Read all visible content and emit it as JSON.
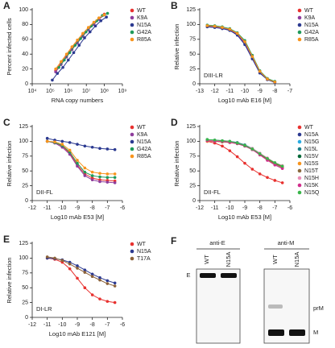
{
  "chart_data": [
    {
      "panel": "A",
      "type": "line",
      "log_x": true,
      "x_label": "RNA copy numbers",
      "y_label": "Percent infected cells",
      "xlim": [
        10000,
        1000000000
      ],
      "xticks": [
        {
          "value": 10000,
          "label": "10⁴"
        },
        {
          "value": 100000,
          "label": "10⁵"
        },
        {
          "value": 1000000,
          "label": "10⁶"
        },
        {
          "value": 10000000,
          "label": "10⁷"
        },
        {
          "value": 100000000,
          "label": "10⁸"
        },
        {
          "value": 1000000000,
          "label": "10⁹"
        }
      ],
      "ylim": [
        0,
        100
      ],
      "yticks": [
        0,
        20,
        40,
        60,
        80,
        100
      ],
      "series": [
        {
          "name": "WT",
          "color": "#e8312f",
          "x": [
            200000,
            400000,
            800000,
            1600000,
            3200000,
            6400000,
            13000000,
            26000000,
            50000000,
            100000000
          ],
          "values": [
            18,
            28,
            38,
            48,
            57,
            66,
            74,
            81,
            88,
            94
          ]
        },
        {
          "name": "K9A",
          "color": "#8e3d9c",
          "x": [
            200000,
            400000,
            800000,
            1600000,
            3200000,
            6400000,
            13000000,
            26000000,
            50000000,
            100000000
          ],
          "values": [
            16,
            26,
            36,
            46,
            55,
            64,
            73,
            80,
            87,
            93
          ]
        },
        {
          "name": "N15A",
          "color": "#2b3990",
          "x": [
            130000,
            250000,
            500000,
            1000000,
            2000000,
            4000000,
            8000000,
            16000000,
            32000000,
            64000000,
            130000000
          ],
          "values": [
            5,
            14,
            22,
            32,
            42,
            52,
            62,
            70,
            78,
            85,
            90
          ]
        },
        {
          "name": "G42A",
          "color": "#1f9a5a",
          "x": [
            300000,
            600000,
            1200000,
            2400000,
            4800000,
            9600000,
            19000000,
            38000000,
            77000000,
            150000000
          ],
          "values": [
            22,
            32,
            42,
            52,
            61,
            70,
            78,
            85,
            92,
            95
          ]
        },
        {
          "name": "R85A",
          "color": "#f7941d",
          "x": [
            200000,
            400000,
            800000,
            1600000,
            3200000,
            6400000,
            13000000,
            26000000,
            50000000,
            100000000
          ],
          "values": [
            20,
            30,
            40,
            50,
            59,
            68,
            76,
            83,
            89,
            93
          ]
        }
      ]
    },
    {
      "panel": "B",
      "type": "line",
      "x_label": "Log10 mAb E16 [M]",
      "y_label": "Relative infection",
      "annotation": "DIII-LR",
      "xlim": [
        -13,
        -7
      ],
      "xticks": [
        -13,
        -12,
        -11,
        -10,
        -9,
        -8,
        -7
      ],
      "ylim": [
        0,
        125
      ],
      "yticks": [
        0,
        25,
        50,
        75,
        100,
        125
      ],
      "x": [
        -12.5,
        -12,
        -11.5,
        -11,
        -10.5,
        -10,
        -9.5,
        -9,
        -8.5,
        -8
      ],
      "series": [
        {
          "name": "WT",
          "color": "#e8312f",
          "values": [
            98,
            97,
            95,
            91,
            84,
            70,
            45,
            20,
            8,
            3
          ]
        },
        {
          "name": "K9A",
          "color": "#8e3d9c",
          "values": [
            97,
            96,
            94,
            90,
            83,
            68,
            43,
            19,
            7,
            3
          ]
        },
        {
          "name": "N15A",
          "color": "#2b3990",
          "values": [
            96,
            95,
            93,
            90,
            82,
            66,
            42,
            18,
            7,
            2
          ]
        },
        {
          "name": "G42A",
          "color": "#1f9a5a",
          "values": [
            99,
            98,
            96,
            93,
            86,
            73,
            48,
            22,
            9,
            4
          ]
        },
        {
          "name": "R85A",
          "color": "#f7941d",
          "values": [
            98,
            97,
            95,
            92,
            85,
            71,
            46,
            21,
            8,
            3
          ]
        }
      ]
    },
    {
      "panel": "C",
      "type": "line",
      "x_label": "Log10 mAb E53 [M]",
      "y_label": "Relative infection",
      "annotation": "DII-FL",
      "xlim": [
        -12,
        -6
      ],
      "xticks": [
        -12,
        -11,
        -10,
        -9,
        -8,
        -7,
        -6
      ],
      "ylim": [
        0,
        125
      ],
      "yticks": [
        0,
        25,
        50,
        75,
        100,
        125
      ],
      "x": [
        -11,
        -10.5,
        -10,
        -9.5,
        -9,
        -8.5,
        -8,
        -7.5,
        -7,
        -6.5
      ],
      "series": [
        {
          "name": "WT",
          "color": "#e8312f",
          "values": [
            100,
            98,
            92,
            80,
            60,
            45,
            38,
            35,
            34,
            33
          ]
        },
        {
          "name": "K9A",
          "color": "#8e3d9c",
          "values": [
            100,
            97,
            90,
            78,
            58,
            42,
            35,
            32,
            31,
            30
          ]
        },
        {
          "name": "N15A",
          "color": "#2b3990",
          "values": [
            105,
            102,
            100,
            98,
            95,
            92,
            90,
            88,
            87,
            86
          ]
        },
        {
          "name": "G42A",
          "color": "#1f9a5a",
          "values": [
            100,
            98,
            93,
            82,
            63,
            48,
            42,
            40,
            39,
            39
          ]
        },
        {
          "name": "R85A",
          "color": "#f7941d",
          "values": [
            100,
            99,
            95,
            85,
            68,
            55,
            48,
            46,
            45,
            45
          ]
        }
      ]
    },
    {
      "panel": "D",
      "type": "line",
      "x_label": "Log10 mAb E53 [M]",
      "y_label": "Relative infection",
      "annotation": "DII-FL",
      "xlim": [
        -12,
        -6
      ],
      "xticks": [
        -12,
        -11,
        -10,
        -9,
        -8,
        -7,
        -6
      ],
      "ylim": [
        0,
        125
      ],
      "yticks": [
        0,
        25,
        50,
        75,
        100,
        125
      ],
      "x": [
        -11.5,
        -11,
        -10.5,
        -10,
        -9.5,
        -9,
        -8.5,
        -8,
        -7.5,
        -7,
        -6.5
      ],
      "series": [
        {
          "name": "WT",
          "color": "#e8312f",
          "values": [
            100,
            97,
            92,
            84,
            74,
            63,
            53,
            45,
            39,
            34,
            30
          ]
        },
        {
          "name": "N15A",
          "color": "#2b3990",
          "values": [
            102,
            101,
            100,
            99,
            97,
            93,
            87,
            79,
            70,
            62,
            56
          ]
        },
        {
          "name": "N15G",
          "color": "#29abe2",
          "values": [
            101,
            101,
            100,
            99,
            96,
            92,
            86,
            78,
            69,
            61,
            55
          ]
        },
        {
          "name": "N15L",
          "color": "#1a7f88",
          "values": [
            103,
            102,
            101,
            100,
            98,
            94,
            88,
            80,
            71,
            63,
            57
          ]
        },
        {
          "name": "N15V",
          "color": "#006837",
          "values": [
            102,
            101,
            100,
            99,
            97,
            93,
            87,
            79,
            70,
            63,
            58
          ]
        },
        {
          "name": "N15S",
          "color": "#f7941d",
          "values": [
            100,
            100,
            99,
            98,
            96,
            92,
            86,
            78,
            69,
            62,
            56
          ]
        },
        {
          "name": "N15T",
          "color": "#8b6a3e",
          "values": [
            101,
            100,
            99,
            98,
            96,
            92,
            86,
            78,
            70,
            62,
            57
          ]
        },
        {
          "name": "N15H",
          "color": "#e98fb7",
          "values": [
            102,
            101,
            100,
            99,
            97,
            93,
            88,
            80,
            72,
            64,
            59
          ]
        },
        {
          "name": "N15K",
          "color": "#d12d8c",
          "values": [
            101,
            100,
            100,
            98,
            96,
            92,
            86,
            77,
            68,
            60,
            54
          ]
        },
        {
          "name": "N15Q",
          "color": "#39b54a",
          "values": [
            103,
            102,
            101,
            100,
            97,
            93,
            87,
            79,
            71,
            64,
            58
          ]
        }
      ]
    },
    {
      "panel": "E",
      "type": "line",
      "x_label": "Log10 mAb E121 [M]",
      "y_label": "Relative infection",
      "annotation": "DI-LR",
      "xlim": [
        -12,
        -6
      ],
      "xticks": [
        -12,
        -11,
        -10,
        -9,
        -8,
        -7,
        -6
      ],
      "ylim": [
        0,
        125
      ],
      "yticks": [
        0,
        25,
        50,
        75,
        100,
        125
      ],
      "x": [
        -11,
        -10.5,
        -10,
        -9.5,
        -9,
        -8.5,
        -8,
        -7.5,
        -7,
        -6.5
      ],
      "series": [
        {
          "name": "WT",
          "color": "#e8312f",
          "values": [
            100,
            98,
            93,
            82,
            66,
            50,
            38,
            31,
            27,
            25
          ]
        },
        {
          "name": "N15A",
          "color": "#2b3990",
          "values": [
            100,
            99,
            97,
            93,
            87,
            80,
            73,
            67,
            62,
            58
          ]
        },
        {
          "name": "T17A",
          "color": "#8c6239",
          "values": [
            102,
            100,
            96,
            90,
            83,
            76,
            69,
            63,
            57,
            53
          ]
        }
      ]
    }
  ],
  "gel": {
    "panel": "F",
    "blots": [
      {
        "antibody": "anti-E",
        "lanes": [
          "WT",
          "N15A"
        ]
      },
      {
        "antibody": "anti-M",
        "lanes": [
          "WT",
          "N15A"
        ]
      }
    ],
    "markers": [
      "E",
      "prM",
      "M"
    ]
  }
}
